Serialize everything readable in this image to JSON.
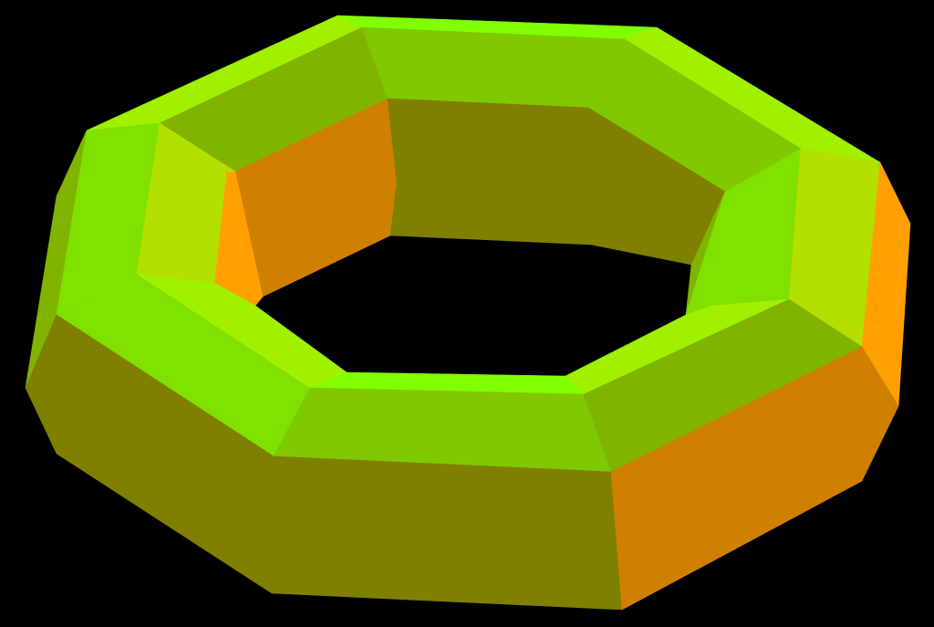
{
  "scene": {
    "subject": "octagonal-torus",
    "background_color": "#000000",
    "palette": {
      "bright_green": "#80ff00",
      "lime": "#a0f000",
      "green": "#80e000",
      "mid_green": "#80c800",
      "olive_green": "#80b400",
      "yellow_green": "#b4e000",
      "olive": "#808000",
      "orange": "#d08000",
      "amber": "#ffa000"
    }
  }
}
